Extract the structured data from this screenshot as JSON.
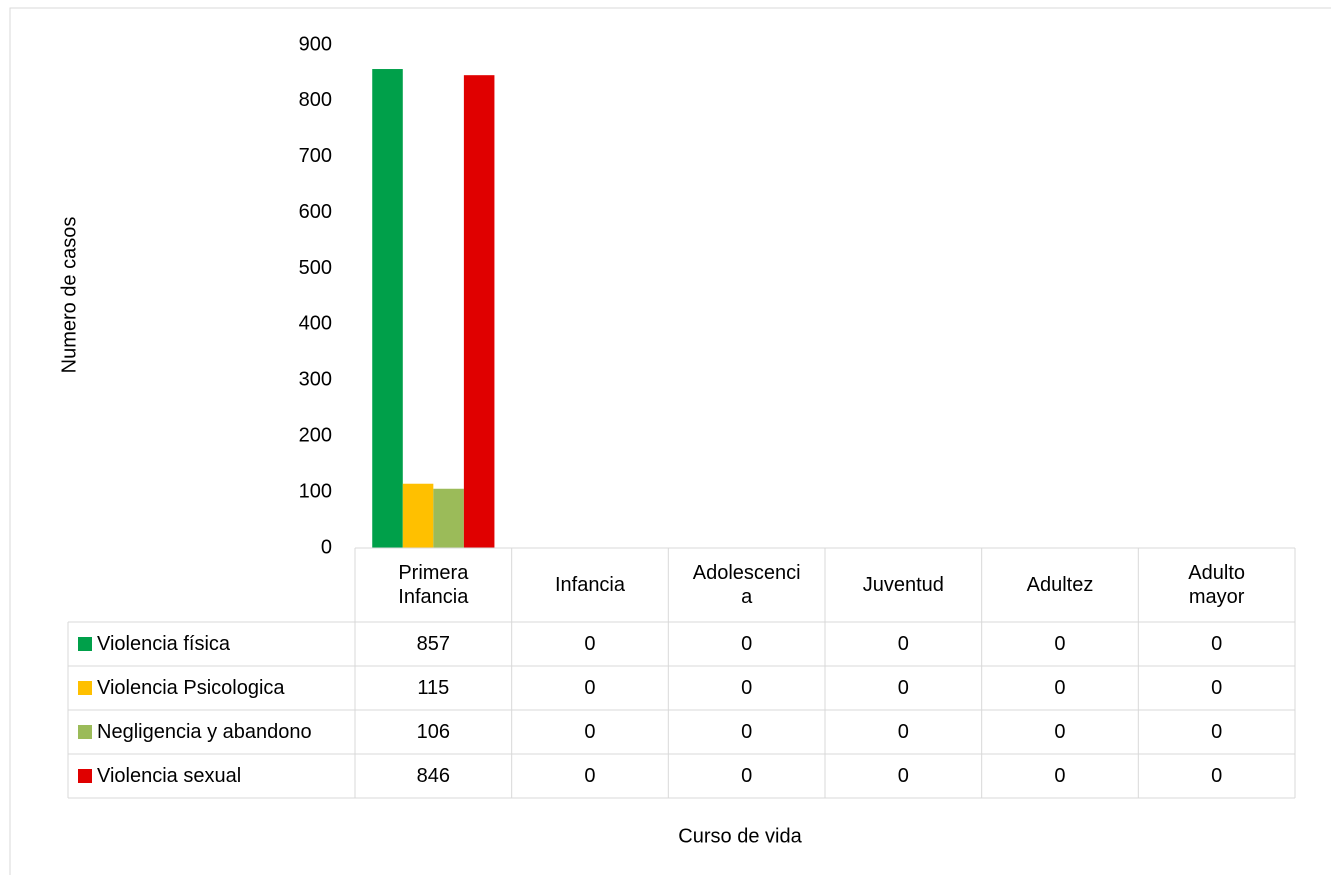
{
  "chart_data": {
    "type": "bar",
    "x_label": "Curso de vida",
    "y_label": "Numero de casos",
    "categories": [
      "Primera Infancia",
      "Infancia",
      "Adolescencia",
      "Juventud",
      "Adultez",
      "Adulto mayor"
    ],
    "series": [
      {
        "name": "Violencia física",
        "color": "#00a04a",
        "values": [
          857,
          0,
          0,
          0,
          0,
          0
        ]
      },
      {
        "name": "Violencia Psicologica",
        "color": "#ffc000",
        "values": [
          115,
          0,
          0,
          0,
          0,
          0
        ]
      },
      {
        "name": "Negligencia y abandono",
        "color": "#9bbb59",
        "values": [
          106,
          0,
          0,
          0,
          0,
          0
        ]
      },
      {
        "name": "Violencia sexual",
        "color": "#e00000",
        "values": [
          846,
          0,
          0,
          0,
          0,
          0
        ]
      }
    ],
    "ylim": [
      0,
      900
    ],
    "yticks": [
      0,
      100,
      200,
      300,
      400,
      500,
      600,
      700,
      800,
      900
    ]
  }
}
